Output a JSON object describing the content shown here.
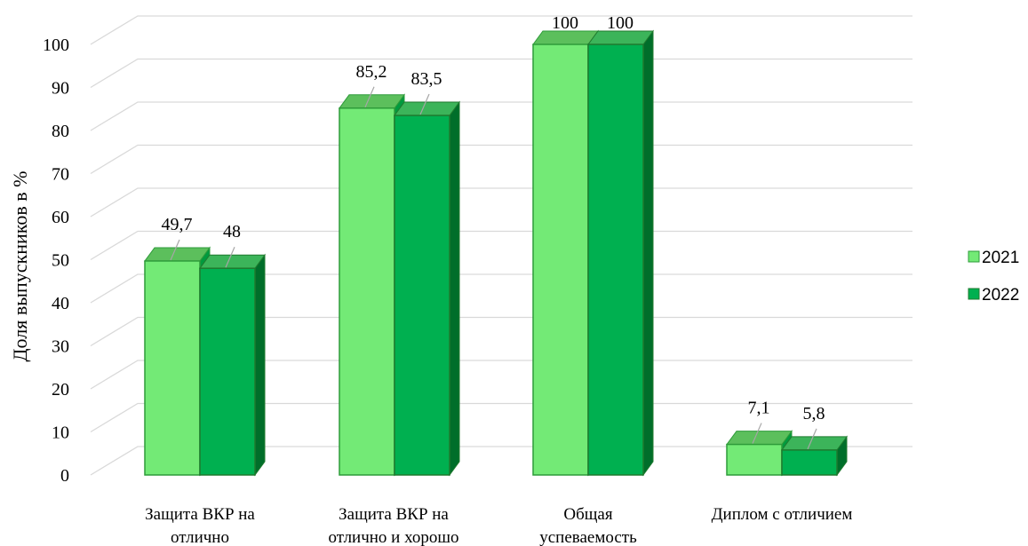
{
  "chart_data": {
    "type": "bar",
    "categories": [
      [
        "Защита ВКР на",
        "отлично"
      ],
      [
        "Защита ВКР на",
        "отлично и хорошо"
      ],
      [
        "Общая",
        "успеваемость"
      ],
      [
        "Диплом с отличием"
      ]
    ],
    "series": [
      {
        "name": "2021",
        "values": [
          49.7,
          85.2,
          100,
          7.1
        ],
        "labels": [
          "49,7",
          "85,2",
          "100",
          "7,1"
        ],
        "color": "#73EA76"
      },
      {
        "name": "2022",
        "values": [
          48,
          83.5,
          100,
          5.8
        ],
        "labels": [
          "48",
          "83,5",
          "100",
          "5,8"
        ],
        "color": "#00B050"
      }
    ],
    "ylabel": "Доля выпускников в %",
    "ylim": [
      0,
      100
    ],
    "yticks": [
      0,
      10,
      20,
      30,
      40,
      50,
      60,
      70,
      80,
      90,
      100
    ],
    "grid": true,
    "legend_position": "right",
    "style": "3d-column"
  }
}
